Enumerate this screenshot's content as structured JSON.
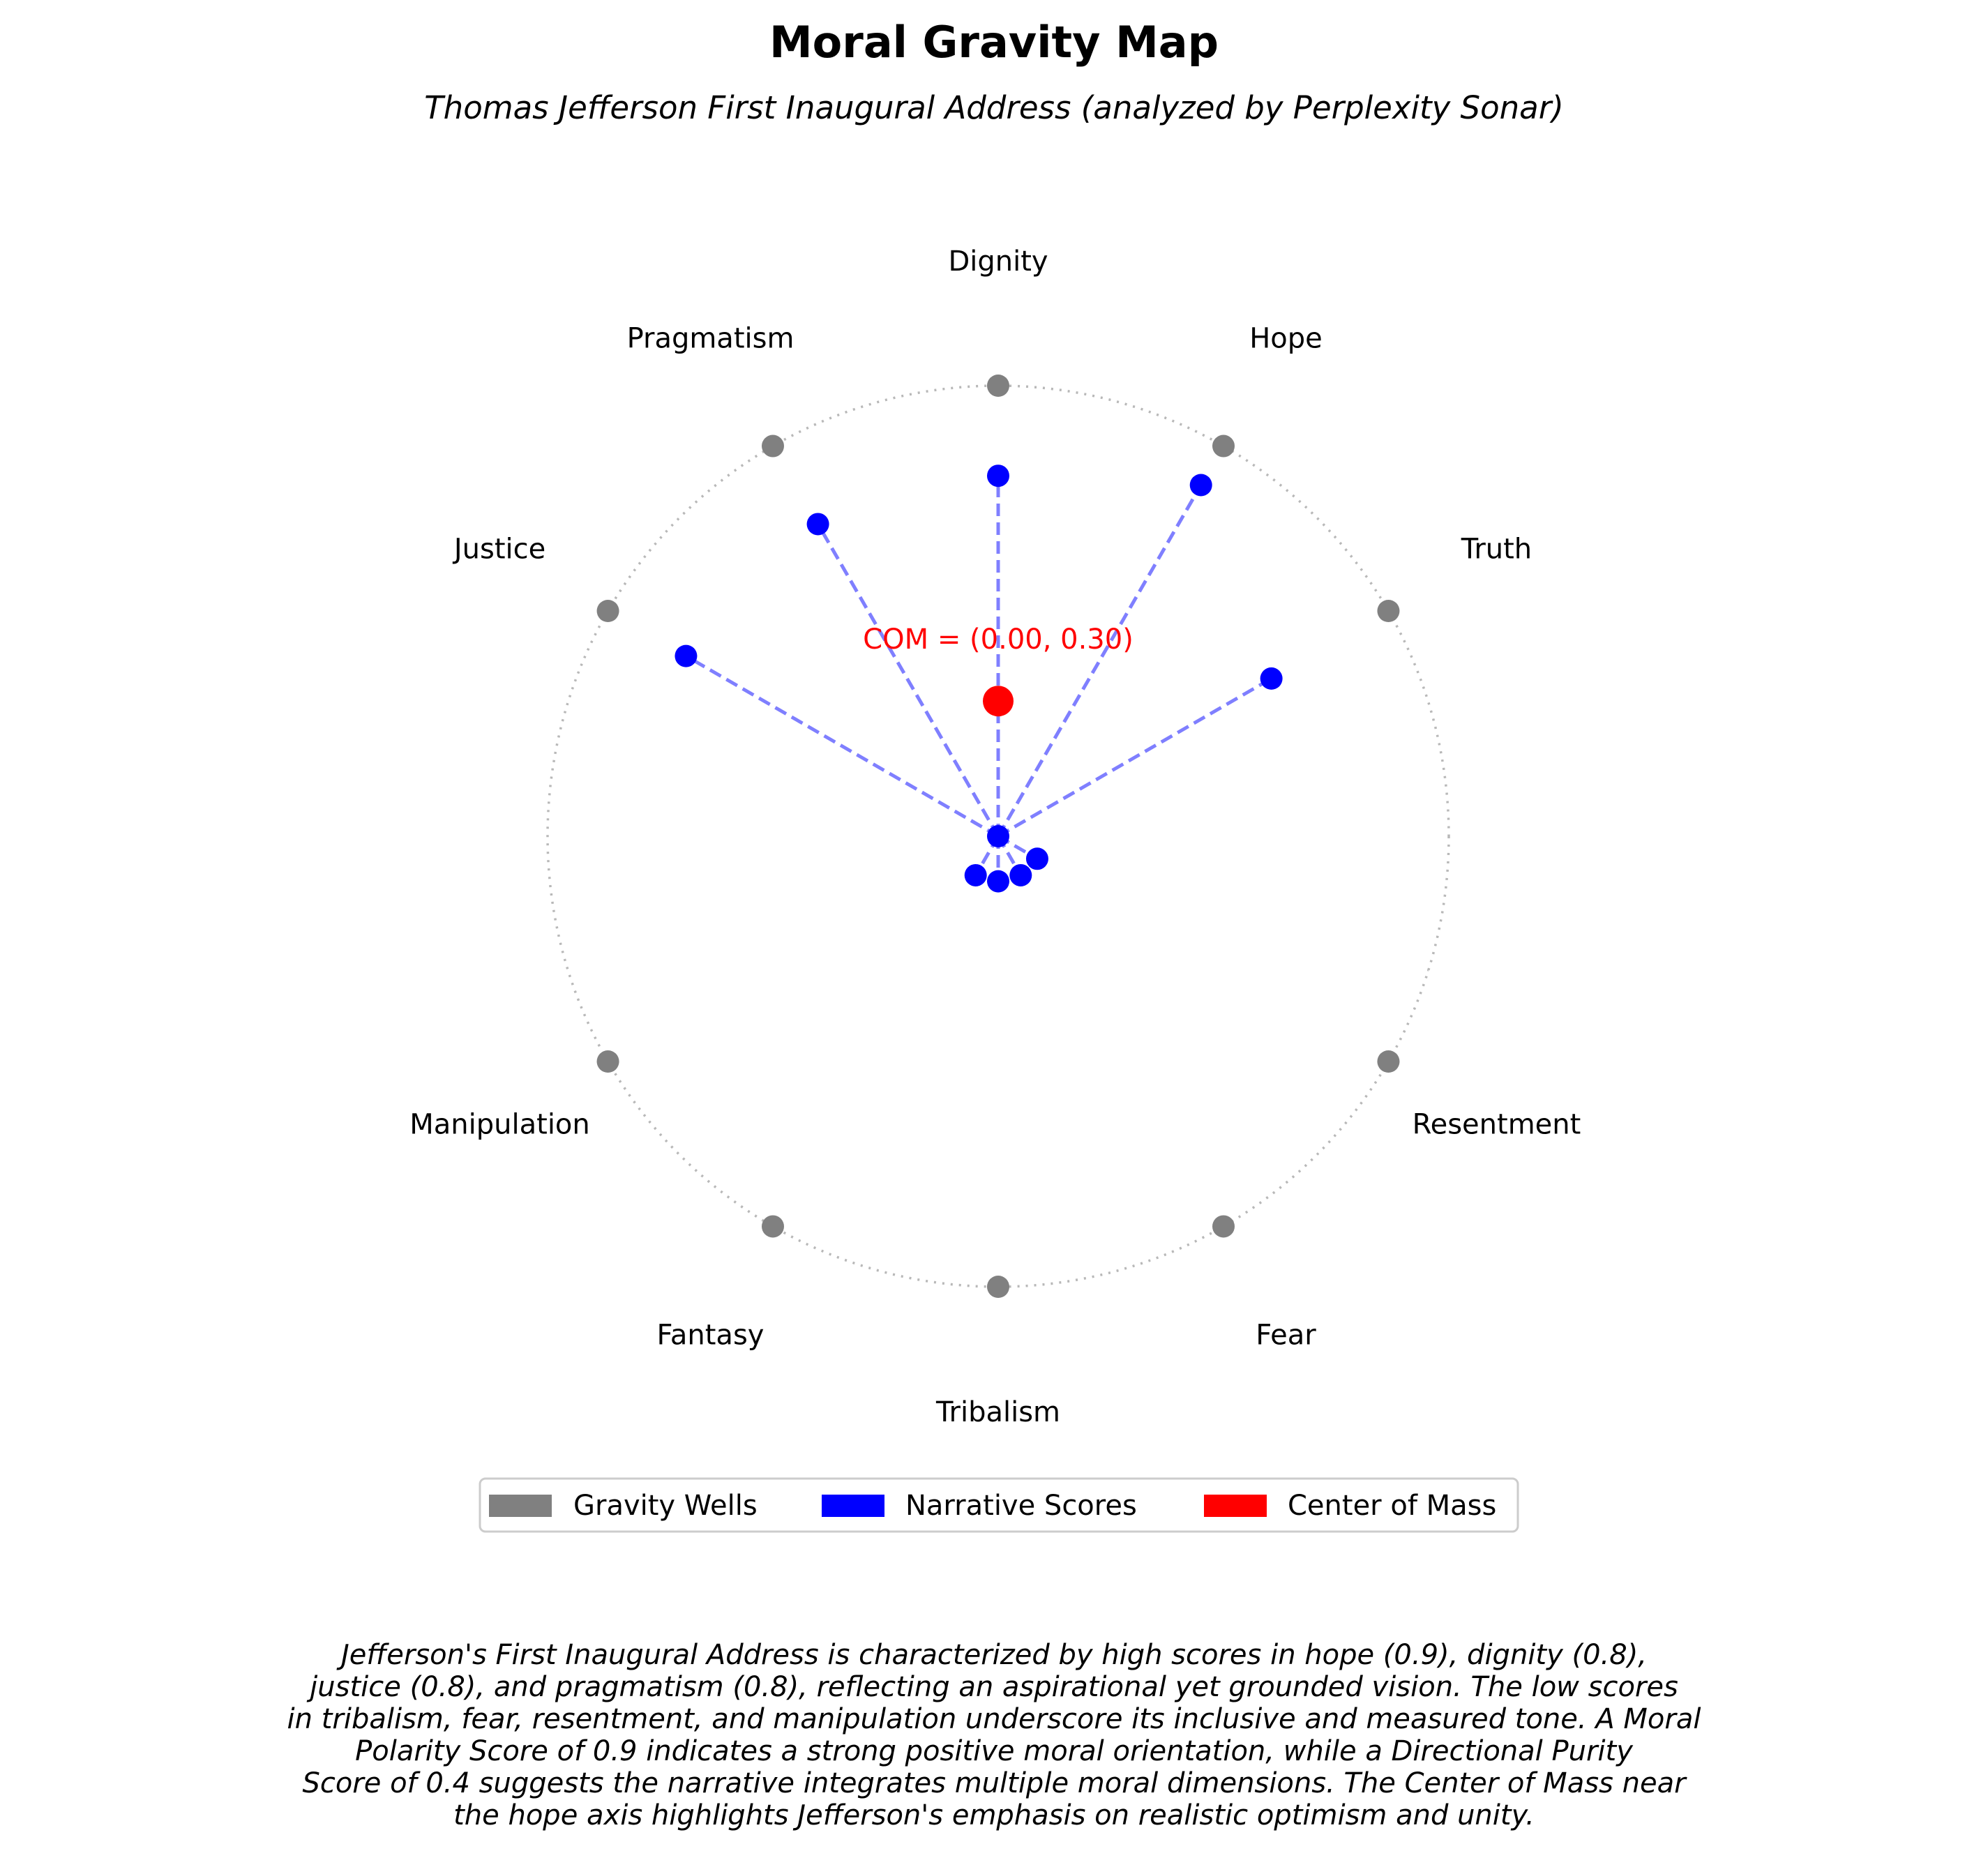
{
  "chart_data": {
    "type": "scatter",
    "title": "Moral Gravity Map",
    "subtitle": "Thomas Jefferson First Inaugural Address (analyzed by Perplexity Sonar)",
    "wells": [
      {
        "name": "Dignity",
        "angle_deg": 90
      },
      {
        "name": "Hope",
        "angle_deg": 60
      },
      {
        "name": "Truth",
        "angle_deg": 30
      },
      {
        "name": "Resentment",
        "angle_deg": -30
      },
      {
        "name": "Fear",
        "angle_deg": -60
      },
      {
        "name": "Tribalism",
        "angle_deg": -90
      },
      {
        "name": "Fantasy",
        "angle_deg": -120
      },
      {
        "name": "Manipulation",
        "angle_deg": -150
      },
      {
        "name": "Justice",
        "angle_deg": 150
      },
      {
        "name": "Pragmatism",
        "angle_deg": 120
      }
    ],
    "scores": [
      {
        "well": "Dignity",
        "value": 0.8
      },
      {
        "well": "Hope",
        "value": 0.9
      },
      {
        "well": "Truth",
        "value": 0.7
      },
      {
        "well": "Resentment",
        "value": 0.1
      },
      {
        "well": "Fear",
        "value": 0.1
      },
      {
        "well": "Tribalism",
        "value": 0.1
      },
      {
        "well": "Fantasy",
        "value": 0.1
      },
      {
        "well": "Manipulation",
        "value": 0.0
      },
      {
        "well": "Justice",
        "value": 0.8
      },
      {
        "well": "Pragmatism",
        "value": 0.8
      }
    ],
    "center_of_mass": {
      "x": 0.0,
      "y": 0.3
    },
    "com_label": "COM = (0.00, 0.30)",
    "legend": [
      "Gravity Wells",
      "Narrative Scores",
      "Center of Mass"
    ],
    "legend_placement": "bottom-center",
    "colors": {
      "wells": "#808080",
      "scores": "#0000ff",
      "com": "#ff0000",
      "circle": "#b8b8b8"
    },
    "description": [
      "Jefferson's First Inaugural Address is characterized by high scores in hope (0.9), dignity (0.8),",
      "justice (0.8), and pragmatism (0.8), reflecting an aspirational yet grounded vision. The low scores",
      "in tribalism, fear, resentment, and manipulation underscore its inclusive and measured tone. A Moral",
      "Polarity Score of 0.9 indicates a strong positive moral orientation, while a Directional Purity",
      "Score of 0.4 suggests the narrative integrates multiple moral dimensions. The Center of Mass near",
      "the hope axis highlights Jefferson's emphasis on realistic optimism and unity."
    ]
  }
}
